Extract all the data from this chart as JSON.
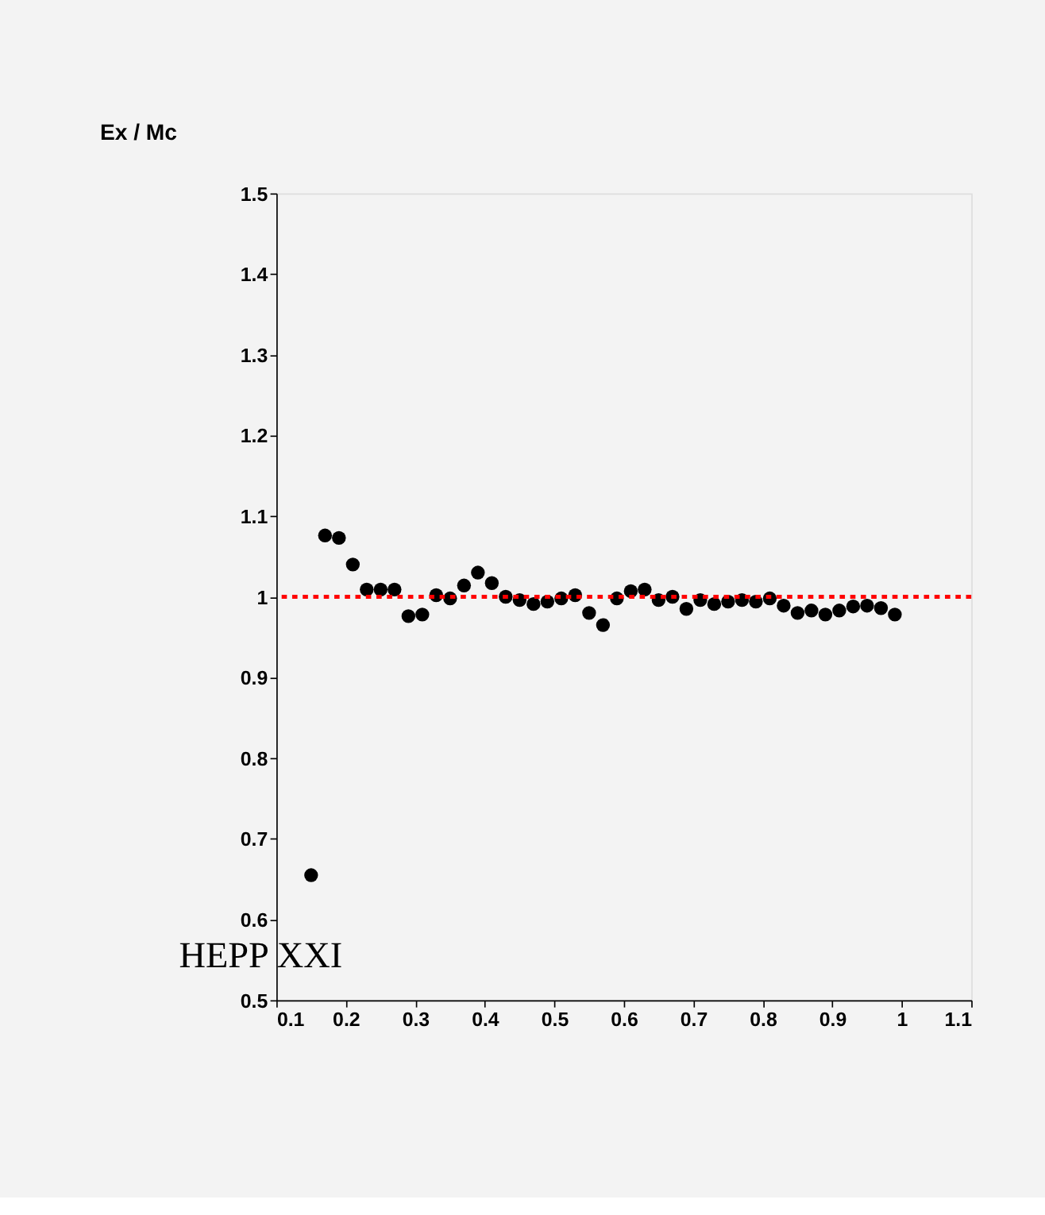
{
  "chart_data": {
    "type": "scatter",
    "title": "Ex / Mc",
    "x": [
      0.15,
      0.17,
      0.19,
      0.21,
      0.23,
      0.25,
      0.27,
      0.29,
      0.31,
      0.33,
      0.35,
      0.37,
      0.39,
      0.41,
      0.43,
      0.45,
      0.47,
      0.49,
      0.51,
      0.53,
      0.55,
      0.57,
      0.59,
      0.61,
      0.63,
      0.65,
      0.67,
      0.69,
      0.71,
      0.73,
      0.75,
      0.77,
      0.79,
      0.81,
      0.83,
      0.85,
      0.87,
      0.89,
      0.91,
      0.93,
      0.95,
      0.97,
      0.99
    ],
    "series": [
      {
        "color": "#000000",
        "values": [
          0.655,
          1.076,
          1.073,
          1.04,
          1.009,
          1.009,
          1.009,
          0.976,
          0.978,
          1.002,
          0.998,
          1.014,
          1.03,
          1.017,
          1.0,
          0.996,
          0.991,
          0.994,
          0.998,
          1.002,
          0.98,
          0.965,
          0.998,
          1.007,
          1.009,
          0.996,
          1.0,
          0.985,
          0.996,
          0.991,
          0.994,
          0.996,
          0.994,
          0.998,
          0.989,
          0.98,
          0.983,
          0.978,
          0.983,
          0.988,
          0.989,
          0.986,
          0.978
        ]
      }
    ],
    "xlim": [
      0.1,
      1.1
    ],
    "xticks": [
      0.1,
      0.2,
      0.3,
      0.4,
      0.5,
      0.6,
      0.7,
      0.8,
      0.9,
      1,
      1.1
    ],
    "ylim": [
      0.5,
      1.5
    ],
    "yticks": [
      0.5,
      0.6,
      0.7,
      0.8,
      0.9,
      1,
      1.1,
      1.2,
      1.3,
      1.4,
      1.5
    ],
    "ref_lines": [
      {
        "axis": "y",
        "value": 1,
        "color": "#ff0000",
        "line_style": "dotted"
      }
    ],
    "annotations": [
      "HEPP XXI"
    ],
    "marker": "circle",
    "grid": false,
    "legend": false
  }
}
